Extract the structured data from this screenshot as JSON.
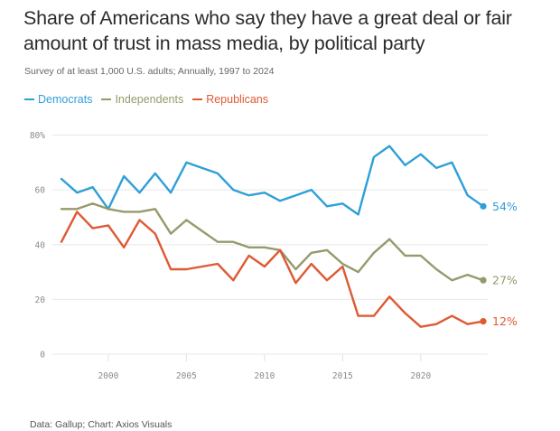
{
  "header": {
    "title": "Share of Americans who say they have a great deal or fair amount of trust in mass media, by political party",
    "subtitle": "Survey of at least 1,000 U.S. adults; Annually, 1997 to 2024"
  },
  "footer": {
    "source": "Data: Gallup; Chart: Axios Visuals"
  },
  "chart_data": {
    "type": "line",
    "title": "Share of Americans who say they have a great deal or fair amount of trust in mass media, by political party",
    "subtitle": "Survey of at least 1,000 U.S. adults; Annually, 1997 to 2024",
    "xlabel": "",
    "ylabel": "",
    "x": [
      1997,
      1998,
      1999,
      2000,
      2001,
      2002,
      2003,
      2004,
      2005,
      2006,
      2007,
      2008,
      2009,
      2010,
      2011,
      2012,
      2013,
      2014,
      2015,
      2016,
      2017,
      2018,
      2019,
      2020,
      2021,
      2022,
      2023,
      2024
    ],
    "xlim": [
      1997,
      2024
    ],
    "ylim": [
      0,
      80
    ],
    "y_ticks": [
      0,
      20,
      40,
      60,
      80
    ],
    "y_tick_labels": [
      "0",
      "20",
      "40",
      "60",
      "80%"
    ],
    "x_ticks": [
      2000,
      2005,
      2010,
      2015,
      2020
    ],
    "x_tick_labels": [
      "2000",
      "2005",
      "2010",
      "2015",
      "2020"
    ],
    "grid": "horizontal",
    "legend_position": "top-left",
    "series": [
      {
        "name": "Democrats",
        "color": "#2f9fd8",
        "end_label": "54%",
        "values": [
          64,
          59,
          61,
          53,
          65,
          59,
          66,
          59,
          70,
          68,
          66,
          60,
          58,
          59,
          56,
          58,
          60,
          54,
          55,
          51,
          72,
          76,
          69,
          73,
          68,
          70,
          58,
          54
        ]
      },
      {
        "name": "Independents",
        "color": "#959a6c",
        "end_label": "27%",
        "values": [
          53,
          53,
          55,
          53,
          52,
          52,
          53,
          44,
          49,
          45,
          41,
          41,
          39,
          39,
          38,
          31,
          37,
          38,
          33,
          30,
          37,
          42,
          36,
          36,
          31,
          27,
          29,
          27
        ]
      },
      {
        "name": "Republicans",
        "color": "#dd5a34",
        "end_label": "12%",
        "values": [
          41,
          52,
          46,
          47,
          39,
          49,
          44,
          31,
          31,
          32,
          33,
          27,
          36,
          32,
          38,
          26,
          33,
          27,
          32,
          14,
          14,
          21,
          15,
          10,
          11,
          14,
          11,
          12
        ]
      }
    ]
  }
}
